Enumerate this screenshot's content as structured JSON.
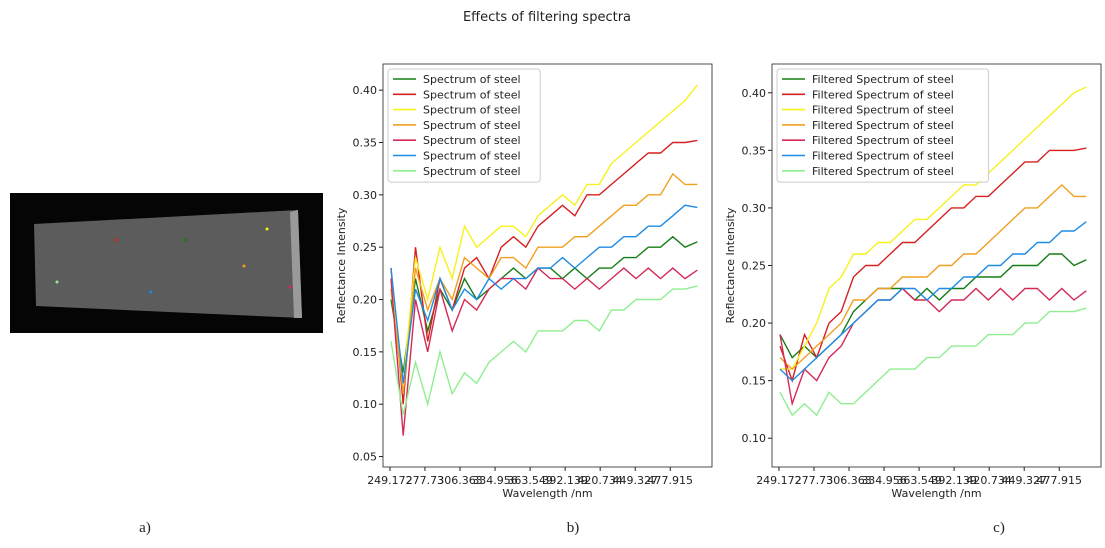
{
  "title": "Effects of filtering spectra",
  "panel_labels": [
    "a)",
    "b)",
    "c)"
  ],
  "chart_data": [
    {
      "type": "line",
      "xlabel": "Wavelength /nm",
      "ylabel": "Reflectance Intensity",
      "x": [
        250,
        260,
        270,
        280,
        290,
        300,
        310,
        320,
        330,
        340,
        350,
        360,
        370,
        380,
        390,
        400,
        410,
        420,
        430,
        440,
        450,
        460,
        470,
        480,
        490,
        500
      ],
      "xlim": [
        243.5,
        512
      ],
      "xticks": [
        249.172,
        277.73,
        306.363,
        334.956,
        363.549,
        392.139,
        420.734,
        449.327,
        477.915
      ],
      "ylim": [
        0.04,
        0.425
      ],
      "yticks": [
        {
          "value": 0.05,
          "label": "0.05"
        },
        {
          "value": 0.1,
          "label": "0.10"
        },
        {
          "value": 0.15,
          "label": "0.15"
        },
        {
          "value": 0.2,
          "label": "0.20"
        },
        {
          "value": 0.25,
          "label": "0.25"
        },
        {
          "value": 0.3,
          "label": "0.30"
        },
        {
          "value": 0.35,
          "label": "0.35"
        },
        {
          "value": 0.4,
          "label": "0.40"
        }
      ],
      "legend": "upper-left",
      "series": [
        {
          "name": "Spectrum of steel",
          "color": "#167d16",
          "values": [
            0.2,
            0.13,
            0.22,
            0.17,
            0.21,
            0.19,
            0.22,
            0.2,
            0.21,
            0.22,
            0.23,
            0.22,
            0.23,
            0.23,
            0.22,
            0.23,
            0.22,
            0.23,
            0.23,
            0.24,
            0.24,
            0.25,
            0.25,
            0.26,
            0.25,
            0.255
          ]
        },
        {
          "name": "Spectrum of steel",
          "color": "#d62020",
          "values": [
            0.23,
            0.1,
            0.25,
            0.16,
            0.22,
            0.19,
            0.23,
            0.24,
            0.22,
            0.25,
            0.26,
            0.25,
            0.27,
            0.28,
            0.29,
            0.28,
            0.3,
            0.3,
            0.31,
            0.32,
            0.33,
            0.34,
            0.34,
            0.35,
            0.35,
            0.352
          ]
        },
        {
          "name": "Spectrum of steel",
          "color": "#f7f21a",
          "values": [
            0.22,
            0.12,
            0.24,
            0.2,
            0.25,
            0.22,
            0.27,
            0.25,
            0.26,
            0.27,
            0.27,
            0.26,
            0.28,
            0.29,
            0.3,
            0.29,
            0.31,
            0.31,
            0.33,
            0.34,
            0.35,
            0.36,
            0.37,
            0.38,
            0.39,
            0.405
          ]
        },
        {
          "name": "Spectrum of steel",
          "color": "#f0a020",
          "values": [
            0.21,
            0.11,
            0.23,
            0.19,
            0.22,
            0.2,
            0.24,
            0.23,
            0.22,
            0.24,
            0.24,
            0.23,
            0.25,
            0.25,
            0.25,
            0.26,
            0.26,
            0.27,
            0.28,
            0.29,
            0.29,
            0.3,
            0.3,
            0.32,
            0.31,
            0.31
          ]
        },
        {
          "name": "Spectrum of steel",
          "color": "#d42a55",
          "values": [
            0.22,
            0.07,
            0.2,
            0.15,
            0.21,
            0.17,
            0.2,
            0.19,
            0.21,
            0.22,
            0.22,
            0.21,
            0.23,
            0.22,
            0.22,
            0.21,
            0.22,
            0.21,
            0.22,
            0.23,
            0.22,
            0.23,
            0.22,
            0.23,
            0.22,
            0.228
          ]
        },
        {
          "name": "Spectrum of steel",
          "color": "#1e8ce6",
          "values": [
            0.23,
            0.12,
            0.21,
            0.18,
            0.22,
            0.19,
            0.21,
            0.2,
            0.22,
            0.21,
            0.22,
            0.22,
            0.23,
            0.23,
            0.24,
            0.23,
            0.24,
            0.25,
            0.25,
            0.26,
            0.26,
            0.27,
            0.27,
            0.28,
            0.29,
            0.288
          ]
        },
        {
          "name": "Spectrum of steel",
          "color": "#90ee90",
          "values": [
            0.16,
            0.09,
            0.14,
            0.1,
            0.15,
            0.11,
            0.13,
            0.12,
            0.14,
            0.15,
            0.16,
            0.15,
            0.17,
            0.17,
            0.17,
            0.18,
            0.18,
            0.17,
            0.19,
            0.19,
            0.2,
            0.2,
            0.2,
            0.21,
            0.21,
            0.213
          ]
        }
      ]
    },
    {
      "type": "line",
      "xlabel": "Wavelength /nm",
      "ylabel": "Reflectance Intensity",
      "x": [
        250,
        260,
        270,
        280,
        290,
        300,
        310,
        320,
        330,
        340,
        350,
        360,
        370,
        380,
        390,
        400,
        410,
        420,
        430,
        440,
        450,
        460,
        470,
        480,
        490,
        500
      ],
      "xlim": [
        243.5,
        512
      ],
      "xticks": [
        249.172,
        277.73,
        306.363,
        334.956,
        363.549,
        392.139,
        420.734,
        449.327,
        477.915
      ],
      "ylim": [
        0.075,
        0.425
      ],
      "yticks": [
        {
          "value": 0.1,
          "label": "0.10"
        },
        {
          "value": 0.15,
          "label": "0.15"
        },
        {
          "value": 0.2,
          "label": "0.20"
        },
        {
          "value": 0.25,
          "label": "0.25"
        },
        {
          "value": 0.3,
          "label": "0.30"
        },
        {
          "value": 0.35,
          "label": "0.35"
        },
        {
          "value": 0.4,
          "label": "0.40"
        }
      ],
      "legend": "upper-left",
      "series": [
        {
          "name": "Filtered Spectrum of steel",
          "color": "#167d16",
          "values": [
            0.19,
            0.17,
            0.18,
            0.17,
            0.18,
            0.19,
            0.21,
            0.22,
            0.23,
            0.23,
            0.23,
            0.22,
            0.23,
            0.22,
            0.23,
            0.23,
            0.24,
            0.24,
            0.24,
            0.25,
            0.25,
            0.25,
            0.26,
            0.26,
            0.25,
            0.255
          ]
        },
        {
          "name": "Filtered Spectrum of steel",
          "color": "#d62020",
          "values": [
            0.18,
            0.15,
            0.19,
            0.17,
            0.2,
            0.21,
            0.24,
            0.25,
            0.25,
            0.26,
            0.27,
            0.27,
            0.28,
            0.29,
            0.3,
            0.3,
            0.31,
            0.31,
            0.32,
            0.33,
            0.34,
            0.34,
            0.35,
            0.35,
            0.35,
            0.352
          ]
        },
        {
          "name": "Filtered Spectrum of steel",
          "color": "#f7f21a",
          "values": [
            0.16,
            0.16,
            0.18,
            0.2,
            0.23,
            0.24,
            0.26,
            0.26,
            0.27,
            0.27,
            0.28,
            0.29,
            0.29,
            0.3,
            0.31,
            0.32,
            0.32,
            0.33,
            0.34,
            0.35,
            0.36,
            0.37,
            0.38,
            0.39,
            0.4,
            0.405
          ]
        },
        {
          "name": "Filtered Spectrum of steel",
          "color": "#f0a020",
          "values": [
            0.17,
            0.16,
            0.17,
            0.18,
            0.19,
            0.2,
            0.22,
            0.22,
            0.23,
            0.23,
            0.24,
            0.24,
            0.24,
            0.25,
            0.25,
            0.26,
            0.26,
            0.27,
            0.28,
            0.29,
            0.3,
            0.3,
            0.31,
            0.32,
            0.31,
            0.31
          ]
        },
        {
          "name": "Filtered Spectrum of steel",
          "color": "#d42a55",
          "values": [
            0.19,
            0.13,
            0.16,
            0.15,
            0.17,
            0.18,
            0.2,
            0.21,
            0.22,
            0.22,
            0.23,
            0.22,
            0.22,
            0.21,
            0.22,
            0.22,
            0.23,
            0.22,
            0.23,
            0.22,
            0.23,
            0.23,
            0.22,
            0.23,
            0.22,
            0.228
          ]
        },
        {
          "name": "Filtered Spectrum of steel",
          "color": "#1e8ce6",
          "values": [
            0.16,
            0.15,
            0.16,
            0.17,
            0.18,
            0.19,
            0.2,
            0.21,
            0.22,
            0.22,
            0.23,
            0.23,
            0.22,
            0.23,
            0.23,
            0.24,
            0.24,
            0.25,
            0.25,
            0.26,
            0.26,
            0.27,
            0.27,
            0.28,
            0.28,
            0.288
          ]
        },
        {
          "name": "Filtered Spectrum of steel",
          "color": "#90ee90",
          "values": [
            0.14,
            0.12,
            0.13,
            0.12,
            0.14,
            0.13,
            0.13,
            0.14,
            0.15,
            0.16,
            0.16,
            0.16,
            0.17,
            0.17,
            0.18,
            0.18,
            0.18,
            0.19,
            0.19,
            0.19,
            0.2,
            0.2,
            0.21,
            0.21,
            0.21,
            0.213
          ]
        }
      ]
    }
  ]
}
